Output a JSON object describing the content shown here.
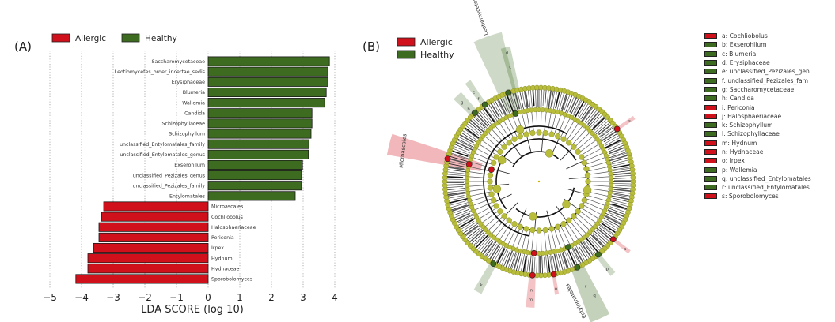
{
  "panel_a_label": "(A)",
  "panel_b_label": "(B)",
  "colors": {
    "allergic": "#d0101a",
    "healthy": "#3d6b1f",
    "node": "#b9bd3c"
  },
  "chart_data": [
    {
      "type": "bar",
      "orientation": "horizontal",
      "title": "",
      "xlabel": "LDA SCORE (log 10)",
      "ylabel": "",
      "xlim": [
        -5,
        4
      ],
      "xticks": [
        -5,
        -4,
        -3,
        -2,
        -1,
        0,
        1,
        2,
        3,
        4
      ],
      "xtick_labels": [
        "−5",
        "−4",
        "−3",
        "−2",
        "−1",
        "0",
        "1",
        "2",
        "3",
        "4"
      ],
      "grid": "vertical-dotted",
      "legend_position": "top-left",
      "legend": [
        {
          "name": "Allergic",
          "color": "#d0101a"
        },
        {
          "name": "Healthy",
          "color": "#3d6b1f"
        }
      ],
      "categories": [
        "Saccharomycetaceae",
        "Leotiomycetes_order_incertae_sedis",
        "Erysiphaceae",
        "Blumeria",
        "Wallemia",
        "Candida",
        "Schizophyllaceae",
        "Schizophyllum",
        "unclassified_Entylomatales_family",
        "unclassified_Entylomatales_genus",
        "Exserohilum",
        "unclassified_Pezizales_genus",
        "unclassified_Pezizales_family",
        "Entylomatales",
        "Microascales",
        "Cochliobolus",
        "Halosphaeriaceae",
        "Periconia",
        "Irpex",
        "Hydnum",
        "Hydnaceae",
        "Sporobolomyces"
      ],
      "values": [
        3.83,
        3.78,
        3.78,
        3.73,
        3.68,
        3.28,
        3.28,
        3.25,
        3.18,
        3.17,
        2.98,
        2.95,
        2.95,
        2.75,
        -3.3,
        -3.37,
        -3.45,
        -3.45,
        -3.62,
        -3.8,
        -3.8,
        -4.18
      ],
      "groups": [
        "Healthy",
        "Healthy",
        "Healthy",
        "Healthy",
        "Healthy",
        "Healthy",
        "Healthy",
        "Healthy",
        "Healthy",
        "Healthy",
        "Healthy",
        "Healthy",
        "Healthy",
        "Healthy",
        "Allergic",
        "Allergic",
        "Allergic",
        "Allergic",
        "Allergic",
        "Allergic",
        "Allergic",
        "Allergic"
      ]
    },
    {
      "type": "cladogram",
      "title": "",
      "legend_position": "top-left",
      "legend": [
        {
          "name": "Allergic",
          "color": "#d0101a"
        },
        {
          "name": "Healthy",
          "color": "#3d6b1f"
        }
      ],
      "clade_labels": [
        "Leotiomycetes_order_incertae_sedis",
        "Microascales",
        "Entylomatales"
      ],
      "key": [
        {
          "letter": "a",
          "taxon": "Cochliobolus",
          "group": "Allergic"
        },
        {
          "letter": "b",
          "taxon": "Exserohilum",
          "group": "Healthy"
        },
        {
          "letter": "c",
          "taxon": "Blumeria",
          "group": "Healthy"
        },
        {
          "letter": "d",
          "taxon": "Erysiphaceae",
          "group": "Healthy"
        },
        {
          "letter": "e",
          "taxon": "unclassified_Pezizales_gen",
          "group": "Healthy"
        },
        {
          "letter": "f",
          "taxon": "unclassified_Pezizales_fam",
          "group": "Healthy"
        },
        {
          "letter": "g",
          "taxon": "Saccharomycetaceae",
          "group": "Healthy"
        },
        {
          "letter": "h",
          "taxon": "Candida",
          "group": "Healthy"
        },
        {
          "letter": "i",
          "taxon": "Periconia",
          "group": "Allergic"
        },
        {
          "letter": "j",
          "taxon": "Halosphaeriaceae",
          "group": "Allergic"
        },
        {
          "letter": "k",
          "taxon": "Schizophyllum",
          "group": "Healthy"
        },
        {
          "letter": "l",
          "taxon": "Schizophyllaceae",
          "group": "Healthy"
        },
        {
          "letter": "m",
          "taxon": "Hydnum",
          "group": "Allergic"
        },
        {
          "letter": "n",
          "taxon": "Hydnaceae",
          "group": "Allergic"
        },
        {
          "letter": "o",
          "taxon": "Irpex",
          "group": "Allergic"
        },
        {
          "letter": "p",
          "taxon": "Wallemia",
          "group": "Healthy"
        },
        {
          "letter": "q",
          "taxon": "unclassified_Entylomatales",
          "group": "Healthy"
        },
        {
          "letter": "r",
          "taxon": "unclassified_Entylomatales",
          "group": "Healthy"
        },
        {
          "letter": "s",
          "taxon": "Sporobolomyces",
          "group": "Allergic"
        }
      ]
    }
  ]
}
